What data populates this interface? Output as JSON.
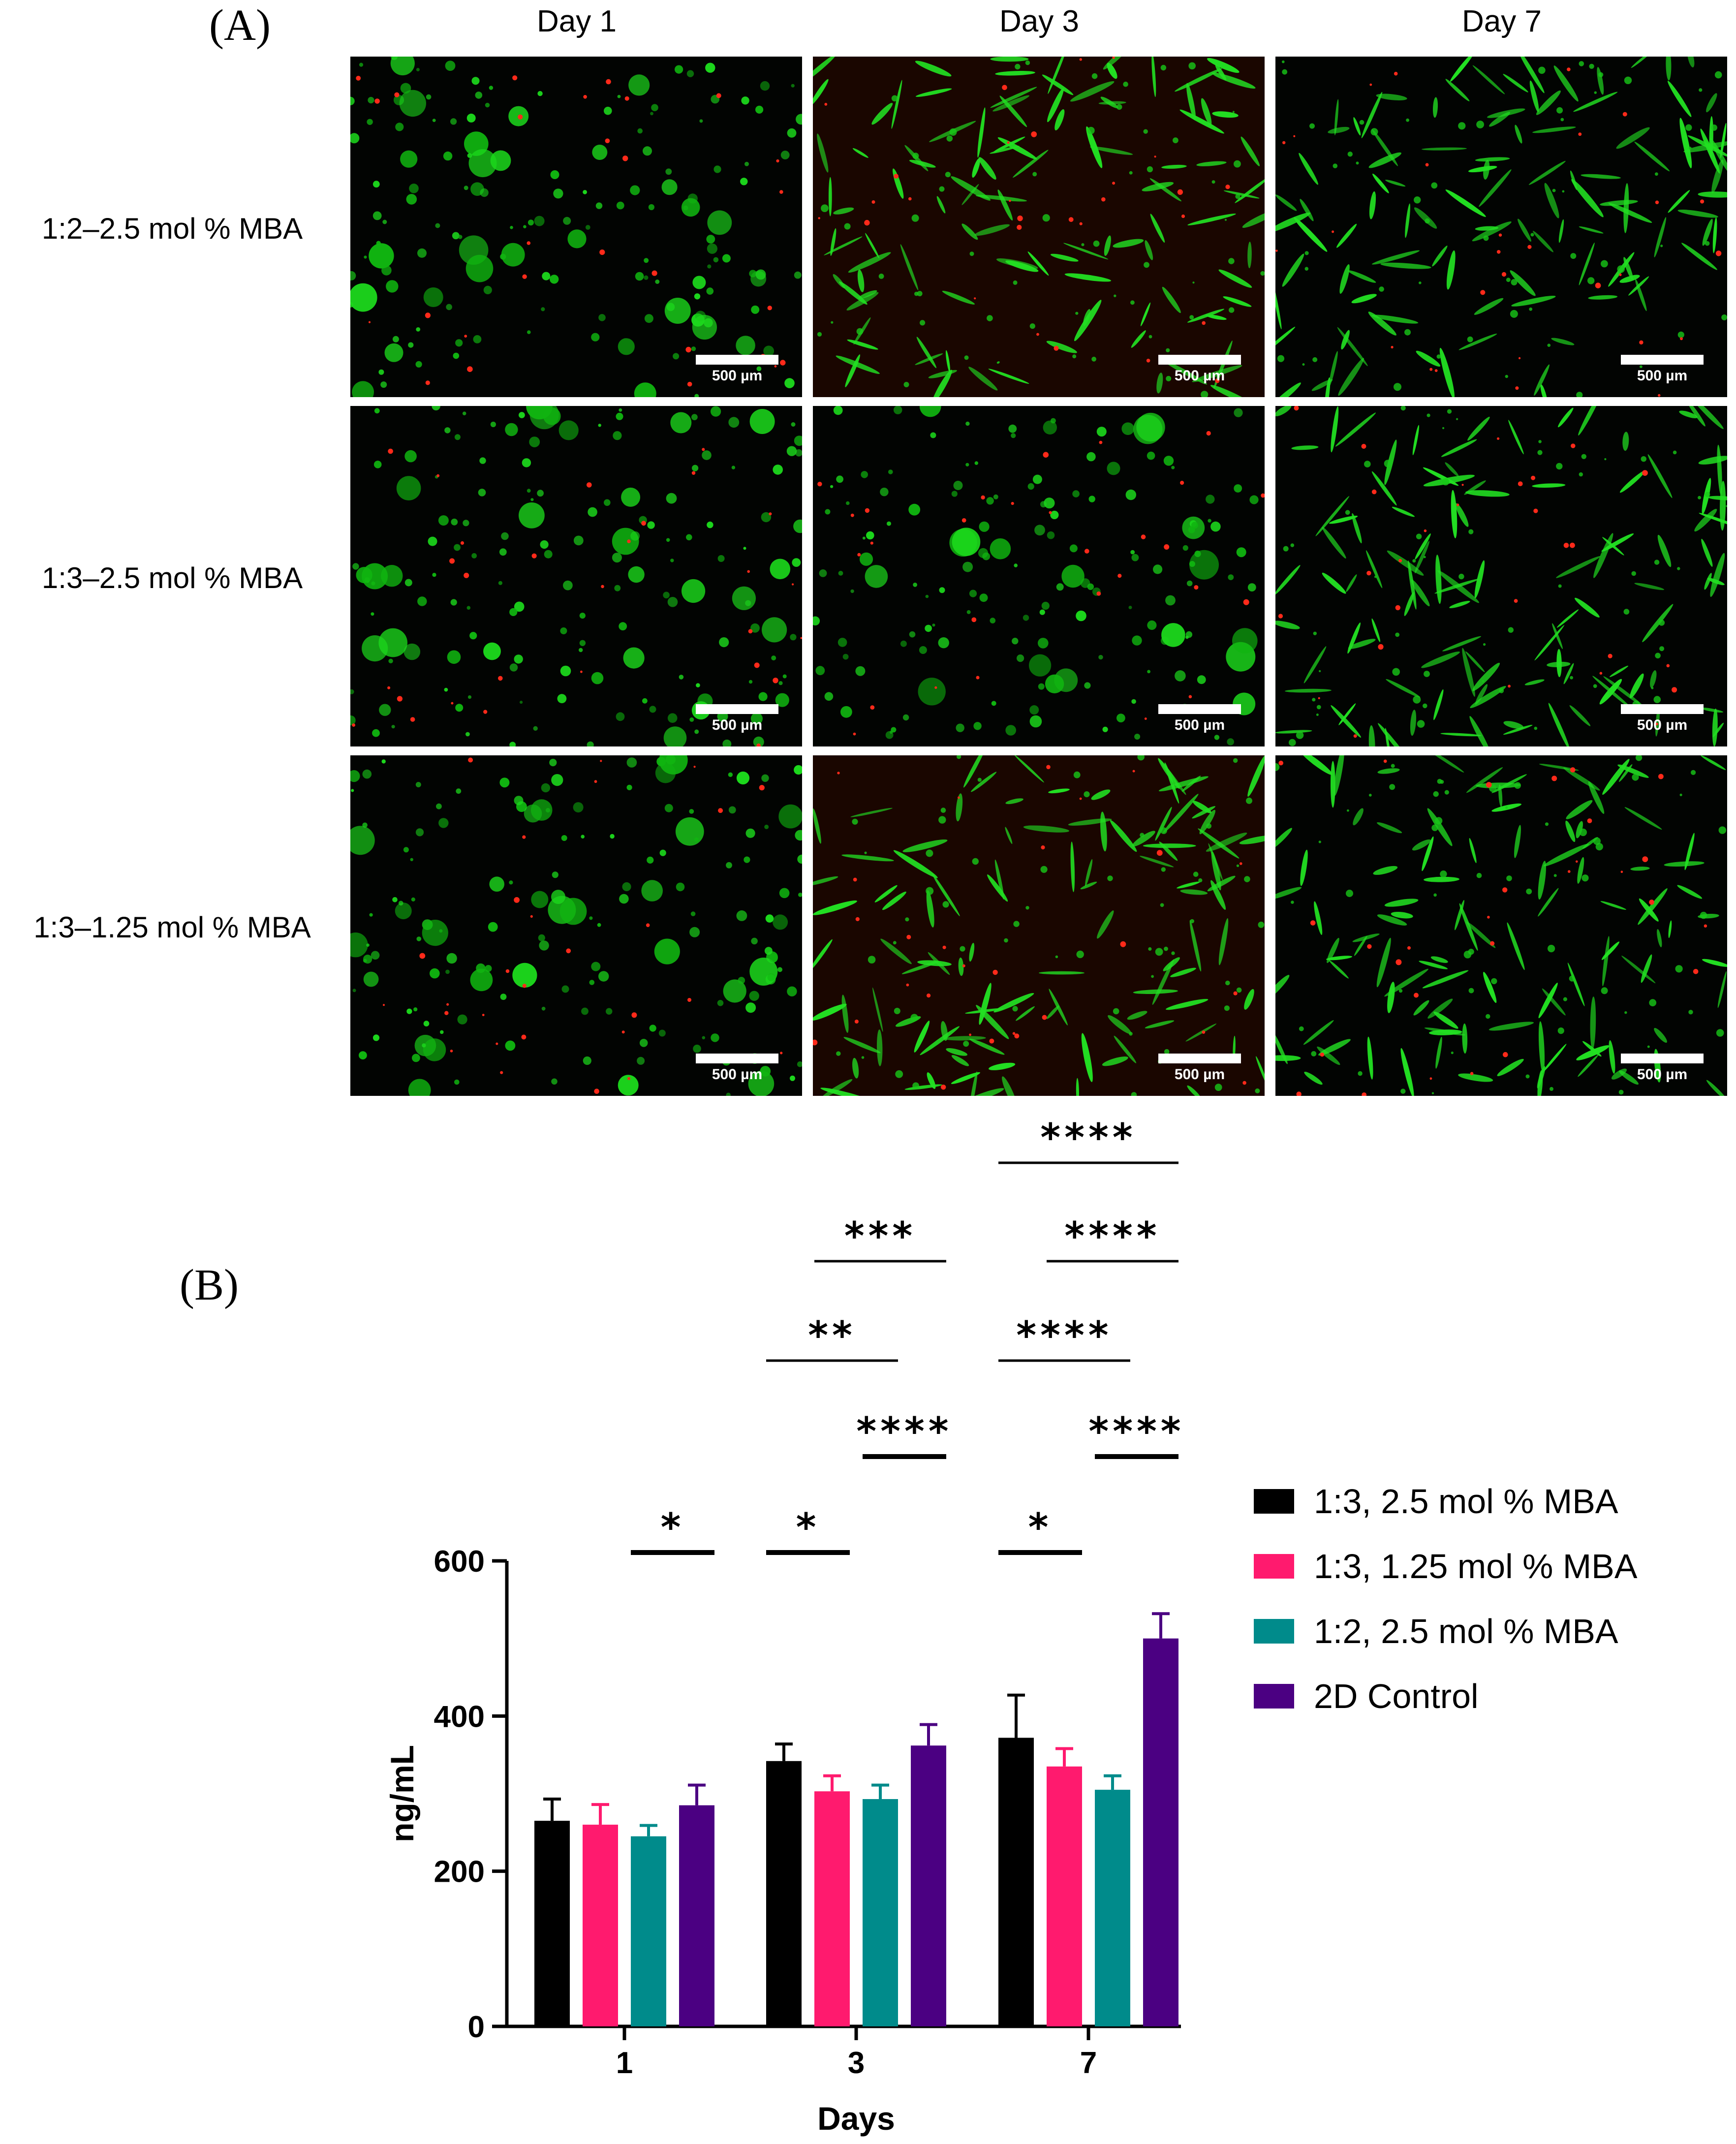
{
  "panel_a_label": "(A)",
  "panel_b_label": "(B)",
  "columns": [
    "Day 1",
    "Day 3",
    "Day 7"
  ],
  "rows": [
    "1:2–2.5 mol % MBA",
    "1:3–2.5 mol % MBA",
    "1:3–1.25 mol % MBA"
  ],
  "scale_bar_label": "500 µm",
  "cell_morphology": [
    [
      "round",
      "spread",
      "spread"
    ],
    [
      "round",
      "round",
      "spread"
    ],
    [
      "round",
      "spread",
      "spread"
    ]
  ],
  "chart_data": {
    "type": "bar",
    "xlabel": "Days",
    "ylabel": "ng/mL",
    "categories": [
      "1",
      "3",
      "7"
    ],
    "ylim": [
      0,
      600
    ],
    "yticks": [
      0,
      200,
      400,
      600
    ],
    "series": [
      {
        "name": "1:3, 2.5 mol % MBA",
        "color": "#000000",
        "values": [
          265,
          342,
          372
        ],
        "errors": [
          28,
          22,
          55
        ]
      },
      {
        "name": "1:3, 1.25 mol % MBA",
        "color": "#ff1a6e",
        "values": [
          260,
          303,
          335
        ],
        "errors": [
          26,
          20,
          23
        ]
      },
      {
        "name": "1:2, 2.5 mol % MBA",
        "color": "#008b8b",
        "values": [
          245,
          293,
          305
        ],
        "errors": [
          14,
          18,
          18
        ]
      },
      {
        "name": "2D Control",
        "color": "#4b0082",
        "values": [
          285,
          362,
          500
        ],
        "errors": [
          26,
          27,
          32
        ]
      }
    ],
    "significance": [
      {
        "label": "*",
        "group": "1",
        "from": 2,
        "to": 3,
        "level": 0
      },
      {
        "label": "*",
        "group": "3",
        "from": 0,
        "to": 1,
        "level": 0
      },
      {
        "label": "****",
        "group": "3",
        "from": 2,
        "to": 3,
        "level": 1
      },
      {
        "label": "**",
        "group": "3",
        "from": 0,
        "to": 2,
        "level": 2
      },
      {
        "label": "***",
        "group": "3",
        "from": 1,
        "to": 3,
        "level": 3
      },
      {
        "label": "*",
        "group": "7",
        "from": 0,
        "to": 1,
        "level": 0
      },
      {
        "label": "****",
        "group": "7",
        "from": 2,
        "to": 3,
        "level": 1
      },
      {
        "label": "****",
        "group": "7",
        "from": 0,
        "to": 2,
        "level": 2
      },
      {
        "label": "****",
        "group": "7",
        "from": 1,
        "to": 3,
        "level": 3
      },
      {
        "label": "****",
        "group": "7",
        "from": 0,
        "to": 3,
        "level": 4
      }
    ]
  }
}
